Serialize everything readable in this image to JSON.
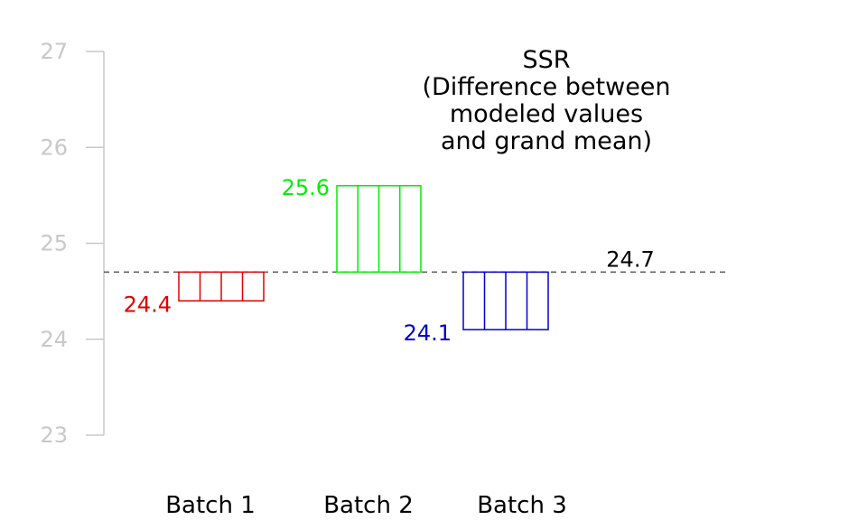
{
  "chart_data": {
    "type": "bar",
    "title_lines": [
      "SSR",
      "(Difference between",
      "modeled values",
      "and grand mean)"
    ],
    "ylim": [
      23,
      27
    ],
    "yticks": [
      23,
      24,
      25,
      26,
      27
    ],
    "grid": false,
    "grand_mean": {
      "value": 24.7,
      "label": "24.7",
      "color": "#000000"
    },
    "observations_per_batch": 5,
    "series": [
      {
        "name": "Batch 1",
        "value": 24.4,
        "label": "24.4",
        "color": "#e00000"
      },
      {
        "name": "Batch 2",
        "value": 25.6,
        "label": "25.6",
        "color": "#00ee00"
      },
      {
        "name": "Batch 3",
        "value": 24.1,
        "label": "24.1",
        "color": "#0000cc"
      }
    ]
  }
}
